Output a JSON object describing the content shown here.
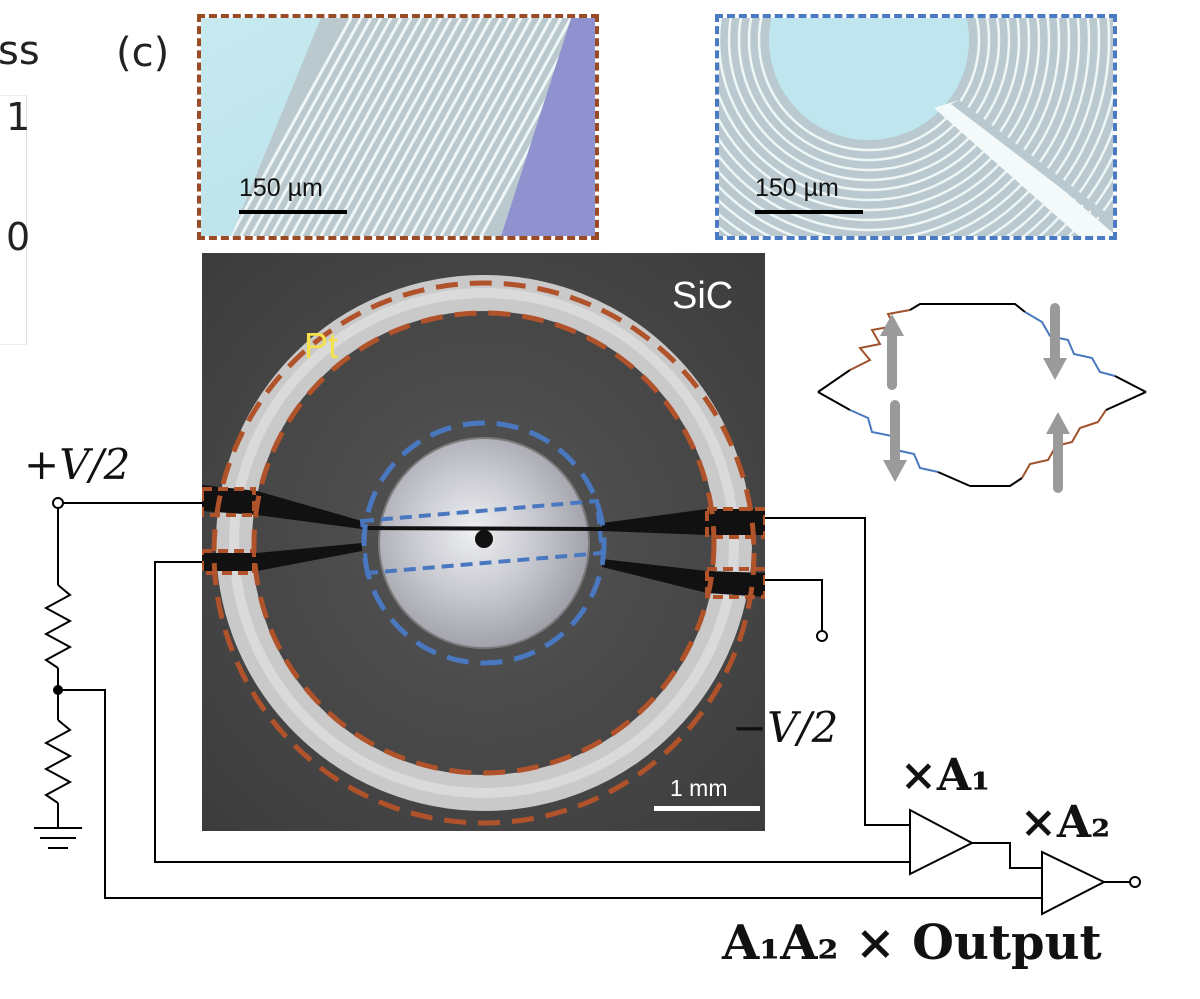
{
  "panel_label": "(c)",
  "left_partial": {
    "top_text": "ss",
    "value_1": "1",
    "value_0": "0"
  },
  "inset_left": {
    "scale_label": "150 µm",
    "border_color": "#9a4a24"
  },
  "inset_right": {
    "scale_label": "150 µm",
    "border_color": "#4a7bc2"
  },
  "photo": {
    "substrate_label": "SiC",
    "electrode_label": "Pt",
    "scale_label": "1 mm",
    "outer_ring_color": "#b0522a",
    "inner_ring_color": "#4a78c0",
    "pt_label_color": "#f3e04a"
  },
  "circuit": {
    "plus_voltage": "+V/2",
    "minus_voltage": "−V/2",
    "amp1_gain": "×A₁",
    "amp2_gain": "×A₂",
    "output_label": "A₁A₂ × Output"
  },
  "bridge": {
    "arm_color_brown": "#a0522d",
    "arm_color_blue": "#4a78c0",
    "arrow_color": "#9a9a9a"
  }
}
